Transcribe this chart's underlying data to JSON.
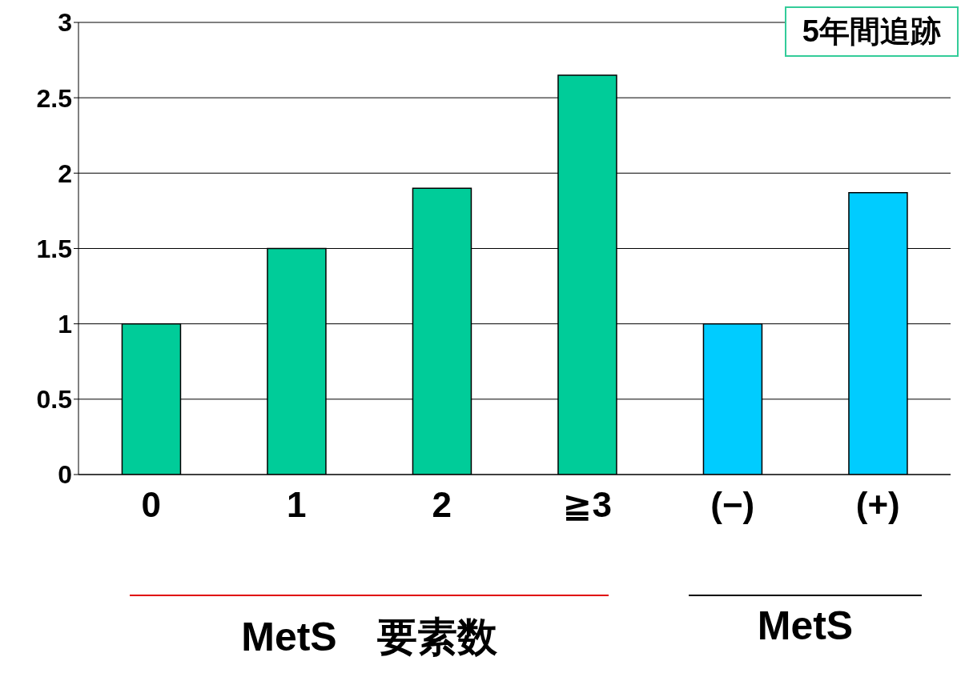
{
  "chart_data": {
    "type": "bar",
    "categories": [
      "0",
      "1",
      "2",
      "≧3",
      "(−)",
      "(+)"
    ],
    "values": [
      1.0,
      1.5,
      1.9,
      2.65,
      1.0,
      1.87
    ],
    "colors": [
      "#00cc99",
      "#00cc99",
      "#00cc99",
      "#00cc99",
      "#00ccff",
      "#00ccff"
    ],
    "ylim": [
      0,
      3
    ],
    "yticks": [
      {
        "value": 0,
        "label": "0"
      },
      {
        "value": 0.5,
        "label": "0.5"
      },
      {
        "value": 1,
        "label": "1"
      },
      {
        "value": 1.5,
        "label": "1.5"
      },
      {
        "value": 2,
        "label": "2"
      },
      {
        "value": 2.5,
        "label": "2.5"
      },
      {
        "value": 3,
        "label": "3"
      }
    ],
    "grid": "y",
    "annotations": [
      "5年間追跡",
      "MetS　要素数",
      "MetS"
    ]
  }
}
